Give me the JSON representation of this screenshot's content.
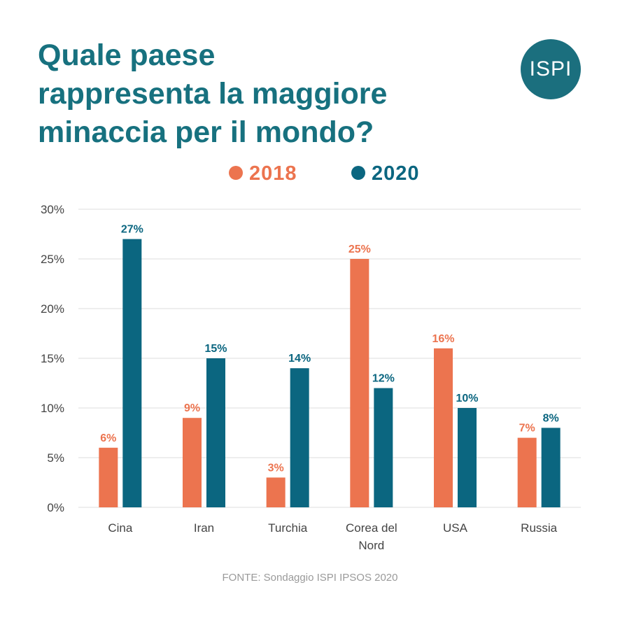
{
  "title_lines": [
    "Quale paese",
    "rappresenta la maggiore",
    "minaccia per il mondo?"
  ],
  "logo_text": "ISPI",
  "source": "FONTE: Sondaggio ISPI IPSOS 2020",
  "colors": {
    "title": "#17717f",
    "logo": "#1b6f7e",
    "s2018": "#ec744f",
    "s2020": "#0b6680",
    "grid": "#dddddd",
    "axis": "#444444"
  },
  "chart_data": {
    "type": "bar",
    "title": "Quale paese rappresenta la maggiore minaccia per il mondo?",
    "categories": [
      [
        "Cina"
      ],
      [
        "Iran"
      ],
      [
        "Turchia"
      ],
      [
        "Corea del",
        "Nord"
      ],
      [
        "USA"
      ],
      [
        "Russia"
      ]
    ],
    "series": [
      {
        "name": "2018",
        "values": [
          6,
          9,
          3,
          25,
          16,
          7
        ],
        "labels": [
          "6%",
          "9%",
          "3%",
          "25%",
          "16%",
          "7%"
        ]
      },
      {
        "name": "2020",
        "values": [
          27,
          15,
          14,
          12,
          10,
          8
        ],
        "labels": [
          "27%",
          "15%",
          "14%",
          "12%",
          "10%",
          "8%"
        ]
      }
    ],
    "yticks": [
      0,
      5,
      10,
      15,
      20,
      25,
      30
    ],
    "ytick_labels": [
      "0%",
      "5%",
      "10%",
      "15%",
      "20%",
      "25%",
      "30%"
    ],
    "ylim": [
      0,
      30
    ],
    "legend_position": "top-center",
    "grid": true
  }
}
